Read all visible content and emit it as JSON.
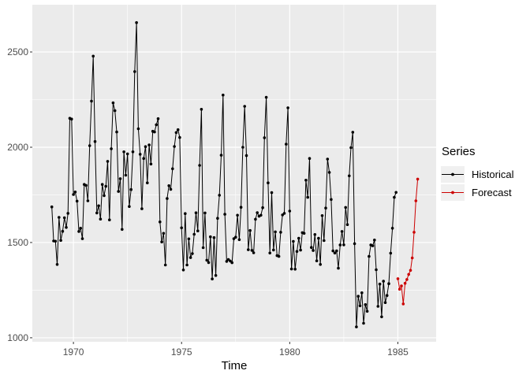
{
  "figure": {
    "background": "#FFFFFF",
    "panel_background": "#EBEBEB",
    "grid_color": "#FFFFFF",
    "tick_mark_color": "#333333",
    "tick_label_color": "#4D4D4D",
    "axis_title_color": "#000000"
  },
  "chart_data": {
    "type": "line",
    "title": "",
    "xlabel": "Time",
    "ylabel": "",
    "x_ticks": [
      1970,
      1975,
      1980,
      1985
    ],
    "y_ticks": [
      1000,
      1500,
      2000,
      2500
    ],
    "x_minor_ticks": [
      1972.5,
      1977.5,
      1982.5
    ],
    "y_minor_ticks": [
      1250,
      1750,
      2250
    ],
    "xlim": [
      1968.1,
      1986.77
    ],
    "ylim": [
      979,
      2748
    ],
    "grid": true,
    "marker": "point",
    "legend": {
      "title": "Series",
      "position": "right",
      "entries": [
        {
          "label": "Historical",
          "color": "#000000"
        },
        {
          "label": "Forecast",
          "color": "#CC0000"
        }
      ]
    },
    "series": [
      {
        "name": "Historical",
        "color": "#000000",
        "start_year": 1969,
        "frequency": 12,
        "values": [
          1687,
          1508,
          1507,
          1385,
          1632,
          1511,
          1559,
          1630,
          1579,
          1653,
          2152,
          2148,
          1752,
          1765,
          1717,
          1558,
          1575,
          1520,
          1805,
          1800,
          1719,
          2008,
          2242,
          2478,
          2030,
          1655,
          1693,
          1623,
          1805,
          1746,
          1795,
          1926,
          1619,
          1992,
          2233,
          2192,
          2080,
          1768,
          1835,
          1569,
          1976,
          1853,
          1965,
          1689,
          1778,
          1976,
          2397,
          2654,
          2097,
          1963,
          1677,
          1941,
          2003,
          1813,
          2012,
          1912,
          2084,
          2080,
          2118,
          2150,
          1608,
          1503,
          1548,
          1382,
          1731,
          1798,
          1779,
          1887,
          2004,
          2077,
          2092,
          2051,
          1577,
          1356,
          1652,
          1382,
          1519,
          1421,
          1442,
          1543,
          1656,
          1561,
          1905,
          2199,
          1473,
          1655,
          1407,
          1395,
          1530,
          1309,
          1526,
          1327,
          1627,
          1748,
          1958,
          2274,
          1648,
          1401,
          1411,
          1403,
          1394,
          1520,
          1528,
          1643,
          1515,
          1685,
          2000,
          2215,
          1956,
          1462,
          1563,
          1459,
          1446,
          1622,
          1657,
          1638,
          1643,
          1683,
          2050,
          2262,
          1813,
          1445,
          1762,
          1461,
          1556,
          1431,
          1427,
          1554,
          1645,
          1653,
          2016,
          2207,
          1665,
          1361,
          1506,
          1360,
          1453,
          1522,
          1460,
          1552,
          1548,
          1827,
          1737,
          1941,
          1474,
          1458,
          1542,
          1404,
          1522,
          1385,
          1641,
          1510,
          1681,
          1938,
          1868,
          1726,
          1456,
          1445,
          1456,
          1365,
          1487,
          1558,
          1488,
          1684,
          1594,
          1850,
          1998,
          2079,
          1494,
          1057,
          1218,
          1168,
          1236,
          1076,
          1174,
          1139,
          1427,
          1487,
          1483,
          1513,
          1357,
          1165,
          1282,
          1110,
          1297,
          1185,
          1222,
          1284,
          1444,
          1575,
          1737,
          1763
        ]
      },
      {
        "name": "Forecast",
        "color": "#CC0000",
        "start_year": 1985,
        "frequency": 12,
        "values": [
          1310,
          1255,
          1272,
          1178,
          1286,
          1306,
          1333,
          1354,
          1419,
          1554,
          1719,
          1833
        ]
      }
    ]
  }
}
